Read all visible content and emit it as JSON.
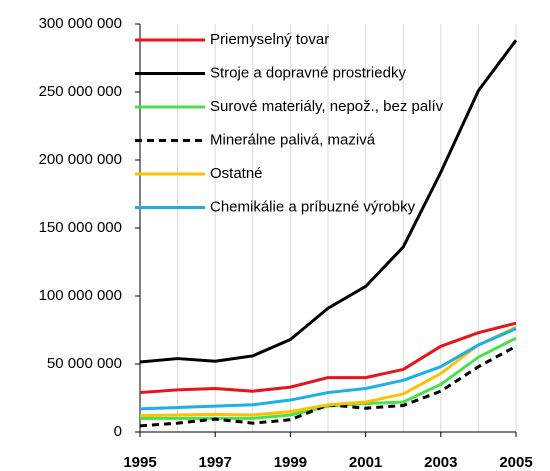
{
  "chart_data": {
    "type": "line",
    "x": [
      1995,
      1996,
      1997,
      1998,
      1999,
      2000,
      2001,
      2002,
      2003,
      2004,
      2005
    ],
    "xlim": [
      1995,
      2005
    ],
    "xticks": [
      1995,
      1997,
      1999,
      2001,
      2003,
      2005
    ],
    "ylim": [
      0,
      300000000
    ],
    "yticks": [
      0,
      {
        "value": 50000000,
        "label": "50 000 000"
      },
      {
        "value": 100000000,
        "label": "100 000 000"
      },
      {
        "value": 150000000,
        "label": "150 000 000"
      },
      {
        "value": 200000000,
        "label": "200 000 000"
      },
      {
        "value": 250000000,
        "label": "250 000 000"
      },
      {
        "value": 300000000,
        "label": "300 000 000"
      }
    ],
    "grid": "x",
    "legend": "top-left",
    "series": [
      {
        "name": "Priemyselný tovar",
        "color": "#e8141b",
        "values": [
          29000000,
          31000000,
          32000000,
          30000000,
          33000000,
          40000000,
          40000000,
          46000000,
          63000000,
          73000000,
          80000000
        ]
      },
      {
        "name": "Stroje a dopravné prostriedky",
        "color": "#000000",
        "values": [
          51500000,
          54000000,
          52000000,
          56000000,
          68000000,
          91000000,
          107000000,
          136000000,
          191000000,
          251000000,
          288000000
        ]
      },
      {
        "name": "Surové materiály, nepož., bez palív",
        "color": "#4be04b",
        "values": [
          10000000,
          10000000,
          10000000,
          10000000,
          12500000,
          19000000,
          21000000,
          22000000,
          35000000,
          55000000,
          69000000
        ]
      },
      {
        "name": "Minerálne palivá, mazivá",
        "color": "#000000",
        "dash": true,
        "values": [
          4500000,
          6500000,
          9500000,
          6500000,
          9000000,
          20000000,
          17500000,
          19500000,
          30000000,
          48000000,
          63000000
        ]
      },
      {
        "name": "Ostatné",
        "color": "#ffc000",
        "values": [
          12000000,
          12500000,
          13000000,
          12500000,
          15000000,
          20000000,
          22000000,
          28000000,
          43000000,
          64000000,
          77000000
        ]
      },
      {
        "name": "Chemikálie a príbuzné výrobky",
        "color": "#1ab0e8",
        "values": [
          17000000,
          18000000,
          19000000,
          20000000,
          23500000,
          29000000,
          32000000,
          38000000,
          48000000,
          64000000,
          76000000
        ]
      }
    ]
  }
}
